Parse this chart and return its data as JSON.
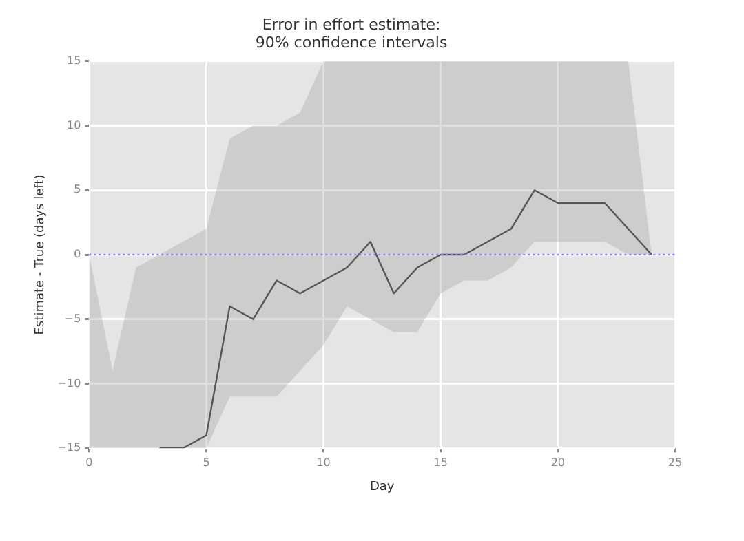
{
  "chart_data": {
    "type": "line",
    "title": "Error in effort estimate:\n90% confidence intervals",
    "xlabel": "Day",
    "ylabel": "Estimate - True (days left)",
    "x": [
      0,
      1,
      2,
      3,
      4,
      5,
      6,
      7,
      8,
      9,
      10,
      11,
      12,
      13,
      14,
      15,
      16,
      17,
      18,
      19,
      20,
      21,
      22,
      23,
      24
    ],
    "series": [
      {
        "color": "#555555",
        "values": [
          null,
          null,
          null,
          -15,
          -15,
          -14,
          -4,
          -5,
          -2,
          -3,
          -2,
          -1,
          1,
          -3,
          -1,
          0,
          0,
          1,
          2,
          5,
          4,
          4,
          4,
          2,
          0
        ],
        "lower": [
          -15,
          -15,
          -15,
          -15,
          -15,
          -15,
          -11,
          -11,
          -11,
          -9,
          -7,
          -4,
          -5,
          -6,
          -6,
          -3,
          -2,
          -2,
          -1,
          1,
          1,
          1,
          1,
          0,
          0
        ],
        "upper": [
          0,
          -9,
          -1,
          0,
          1,
          2,
          9,
          10,
          10,
          11,
          15,
          15,
          15,
          15,
          15,
          15,
          15,
          15,
          15,
          15,
          15,
          15,
          15,
          15,
          0
        ]
      }
    ],
    "xlim": [
      0,
      25
    ],
    "xticks": [
      0,
      5,
      10,
      15,
      20,
      25
    ],
    "ylim": [
      -15,
      15
    ],
    "yticks": [
      -15,
      -10,
      -5,
      0,
      5,
      10,
      15
    ],
    "ref_lines": [
      {
        "axis": "y",
        "value": 0,
        "color": "#8888ee",
        "line_style": "dotted"
      }
    ],
    "grid": true,
    "legend": false,
    "marker": "none",
    "line_style": "solid"
  }
}
